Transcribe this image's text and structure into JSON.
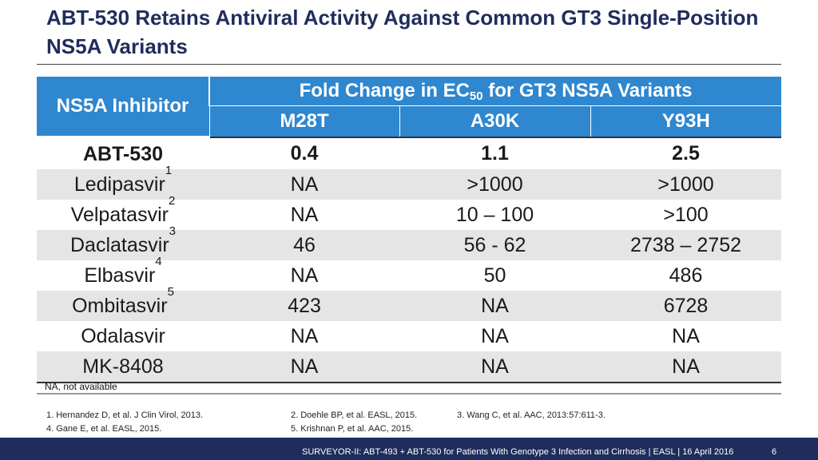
{
  "slide": {
    "title": "ABT-530 Retains Antiviral Activity Against Common GT3 Single-Position NS5A Variants"
  },
  "table": {
    "inhibitor_header": "NS5A Inhibitor",
    "group_header": {
      "prefix": "Fold Change in EC",
      "subscript": "50",
      "suffix": " for GT3 NS5A Variants"
    },
    "columns": [
      "M28T",
      "A30K",
      "Y93H"
    ],
    "rows": [
      {
        "name": "ABT-530",
        "sup": "",
        "values": [
          "0.4",
          "1.1",
          "2.5"
        ],
        "bold": true,
        "shaded": false
      },
      {
        "name": "Ledipasvir",
        "sup": "1",
        "values": [
          "NA",
          ">1000",
          ">1000"
        ],
        "bold": false,
        "shaded": true
      },
      {
        "name": "Velpatasvir",
        "sup": "2",
        "values": [
          "NA",
          "10 – 100",
          ">100"
        ],
        "bold": false,
        "shaded": false
      },
      {
        "name": "Daclatasvir",
        "sup": "3",
        "values": [
          "46",
          "56 - 62",
          "2738 – 2752"
        ],
        "bold": false,
        "shaded": true
      },
      {
        "name": "Elbasvir",
        "sup": "4",
        "values": [
          "NA",
          "50",
          "486"
        ],
        "bold": false,
        "shaded": false
      },
      {
        "name": "Ombitasvir",
        "sup": "5",
        "values": [
          "423",
          "NA",
          "6728"
        ],
        "bold": false,
        "shaded": true
      },
      {
        "name": "Odalasvir",
        "sup": "",
        "values": [
          "NA",
          "NA",
          "NA"
        ],
        "bold": false,
        "shaded": false
      },
      {
        "name": "MK-8408",
        "sup": "",
        "values": [
          "NA",
          "NA",
          "NA"
        ],
        "bold": false,
        "shaded": true
      }
    ]
  },
  "note": "NA, not available",
  "references": [
    "1. Hernandez D, et al. J Clin Virol, 2013.",
    "2. Doehle BP, et al. EASL, 2015.",
    "3. Wang C, et al. AAC, 2013:57:611-3.",
    "4. Gane E, et al.  EASL, 2015.",
    "5. Krishnan P, et al. AAC, 2015."
  ],
  "footer": {
    "text": "SURVEYOR-II: ABT-493 + ABT-530 for Patients With Genotype 3 Infection and Cirrhosis  | EASL | 16 April 2016",
    "page": "6"
  },
  "colors": {
    "header_blue": "#2e87cf",
    "title_navy": "#1f2d5c",
    "row_shade": "#e5e5e5",
    "footer_bar": "#1f2d5c"
  }
}
